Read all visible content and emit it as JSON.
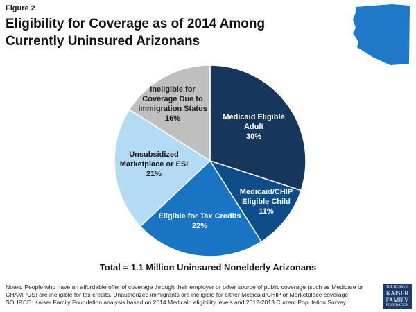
{
  "figure_label": "Figure 2",
  "title": "Eligibility for Coverage as of 2014 Among Currently Uninsured Arizonans",
  "total_label": "Total = 1.1 Million Uninsured Nonelderly Arizonans",
  "notes": "Notes: People who have an affordable offer of coverage through their employer or other source of public coverage (such as Medicare or CHAMPUS) are ineligible for tax credits. Unauthorized immigrants are ineligible for either Medicaid/CHIP or Marketplace coverage.",
  "source": "SOURCE: Kaiser Family Foundation analysis based on 2014 Medicaid eligibility levels and 2012-2013 Current Population Survey.",
  "logo": {
    "line1": "THE HENRY J.",
    "line2": "KAISER",
    "line3": "FAMILY",
    "line4": "FOUNDATION"
  },
  "state_icon": "arizona-map-icon",
  "colors": {
    "state": "#1f78c8"
  },
  "chart_data": {
    "type": "pie",
    "title": "",
    "slices": [
      {
        "label": "Medicaid Eligible Adult",
        "value": 30,
        "display": "30%",
        "color": "#16365c",
        "label_color": "#ffffff"
      },
      {
        "label": "Medicaid/CHIP Eligible Child",
        "value": 11,
        "display": "11%",
        "color": "#0e4c8a",
        "label_color": "#ffffff"
      },
      {
        "label": "Eligible for Tax Credits",
        "value": 22,
        "display": "22%",
        "color": "#1a74c4",
        "label_color": "#ffffff"
      },
      {
        "label": "Unsubsidized Marketplace or ESI",
        "value": 21,
        "display": "21%",
        "color": "#b3dcf4",
        "label_color": "#1a1a1a"
      },
      {
        "label": "Ineligible for Coverage Due to Immigration Status",
        "value": 16,
        "display": "16%",
        "color": "#bfbfbf",
        "label_color": "#1a1a1a"
      }
    ]
  }
}
